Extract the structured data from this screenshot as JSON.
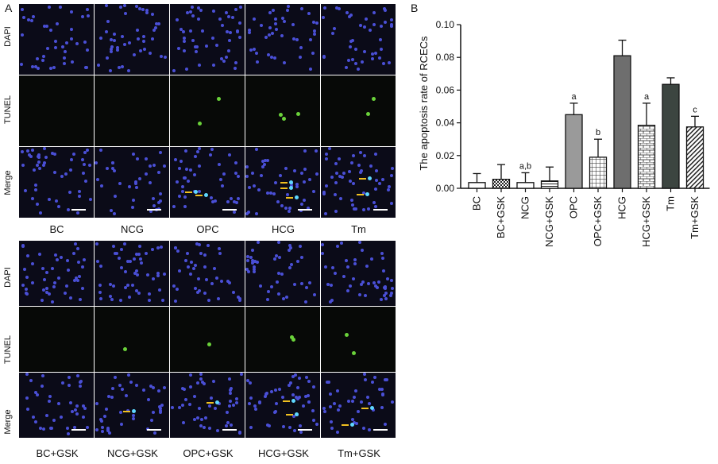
{
  "panels": {
    "a_label": "A",
    "b_label": "B"
  },
  "micrographs": {
    "rows": [
      "DAPI",
      "TUNEL",
      "Merge"
    ],
    "top_groups": [
      "BC",
      "NCG",
      "OPC",
      "HCG",
      "Tm"
    ],
    "bottom_groups": [
      "BC+GSK",
      "NCG+GSK",
      "OPC+GSK",
      "HCG+GSK",
      "Tm+GSK"
    ]
  },
  "chart_data": {
    "type": "bar",
    "ylabel": "The apoptosis rate of RCECs",
    "xlabel": "",
    "ylim": [
      0,
      0.1
    ],
    "yticks": [
      "0.00",
      "0.02",
      "0.04",
      "0.06",
      "0.08",
      "0.10"
    ],
    "categories": [
      "BC",
      "BC+GSK",
      "NCG",
      "NCG+GSK",
      "OPC",
      "OPC+GSK",
      "HCG",
      "HCG+GSK",
      "Tm",
      "Tm+GSK"
    ],
    "values": [
      0.0035,
      0.0055,
      0.0035,
      0.0045,
      0.045,
      0.019,
      0.081,
      0.0385,
      0.0635,
      0.0375
    ],
    "errors": [
      0.0055,
      0.009,
      0.006,
      0.0085,
      0.007,
      0.011,
      0.0095,
      0.0135,
      0.004,
      0.0065
    ],
    "annotations": [
      "",
      "",
      "a,b",
      "",
      "a",
      "b",
      "",
      "a",
      "",
      "c"
    ],
    "fills": [
      "white",
      "dots",
      "white",
      "stripes-h",
      "#9a9a9a",
      "grid",
      "#6e6e6e",
      "brick",
      "#3c4540",
      "diag"
    ]
  }
}
